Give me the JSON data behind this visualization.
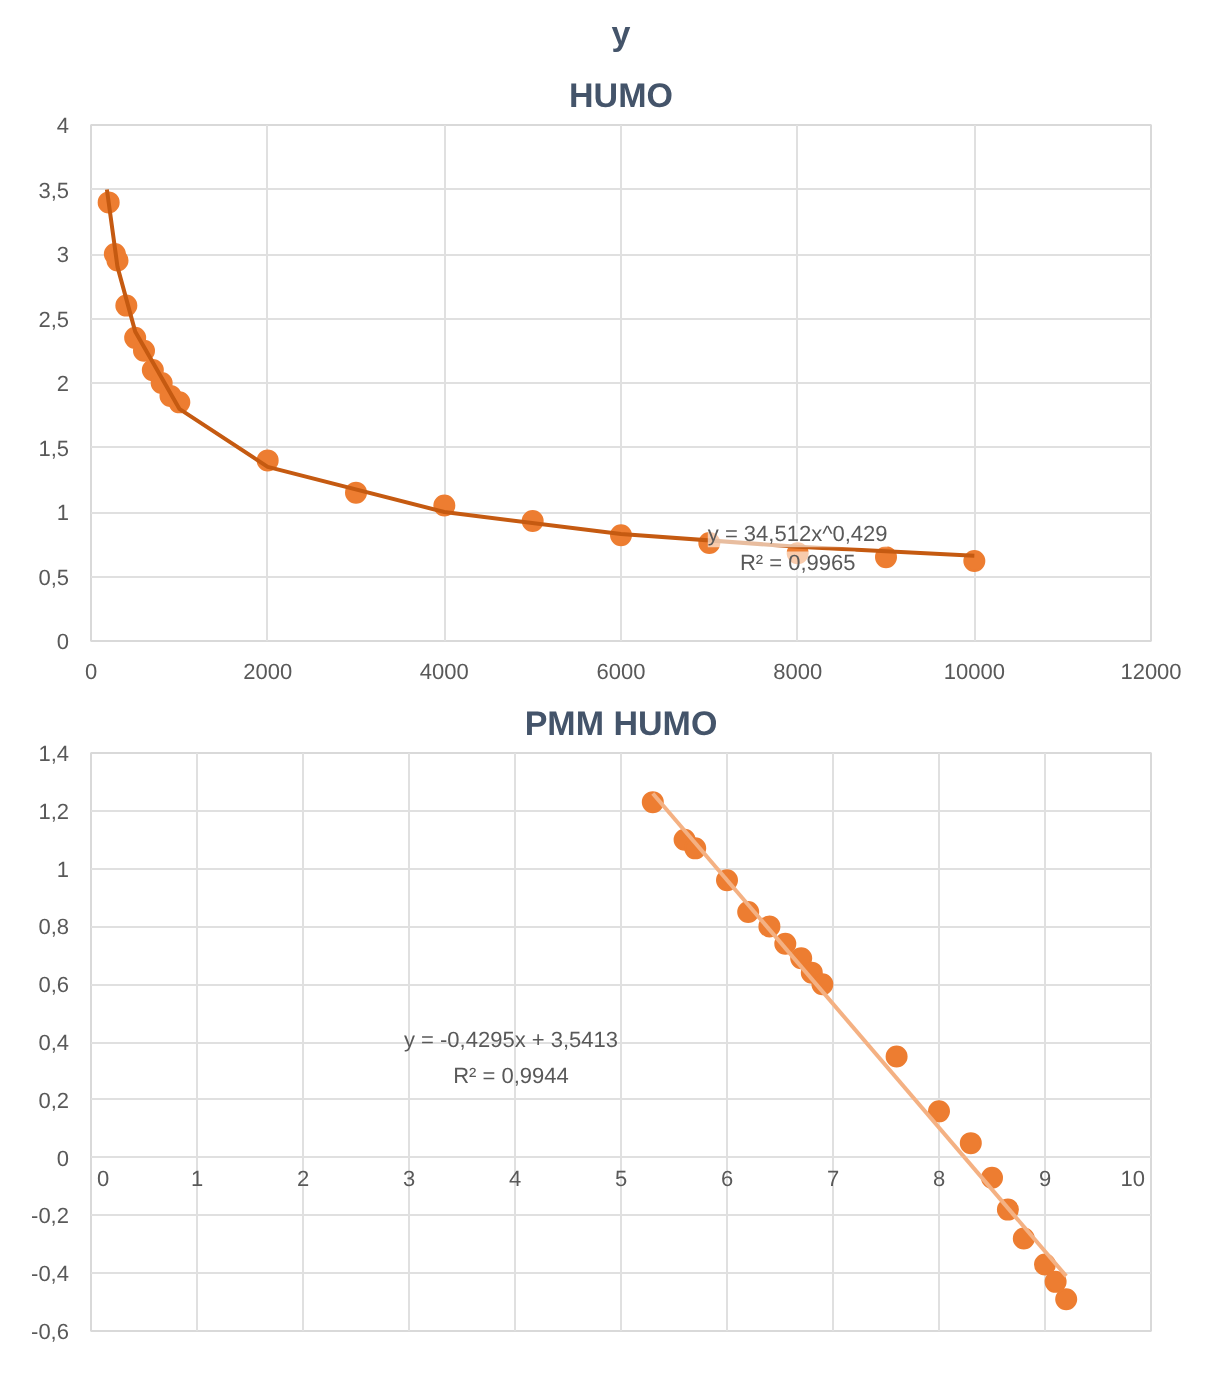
{
  "chart_data": [
    {
      "type": "scatter",
      "title": "y",
      "subtitle": "HUMO",
      "marker": "circle",
      "grid": true,
      "xlim": [
        0,
        12000
      ],
      "xticks": [
        0,
        2000,
        4000,
        6000,
        8000,
        10000,
        12000
      ],
      "ylim": [
        0,
        4
      ],
      "yticks": [
        0,
        {
          "value": 0.5,
          "label": "0,5"
        },
        1,
        {
          "value": 1.5,
          "label": "1,5"
        },
        2,
        {
          "value": 2.5,
          "label": "2,5"
        },
        3,
        {
          "value": 3.5,
          "label": "3,5"
        },
        4
      ],
      "series": [
        {
          "color": "#ed7d31",
          "x": [
            200,
            270,
            300,
            400,
            500,
            600,
            700,
            800,
            900,
            1000,
            2000,
            3000,
            4000,
            5000,
            6000,
            7000,
            8000,
            9000,
            10000
          ],
          "values": [
            3.4,
            3.0,
            2.95,
            2.6,
            2.35,
            2.25,
            2.1,
            2.0,
            1.9,
            1.85,
            1.4,
            1.15,
            1.05,
            0.93,
            0.82,
            0.76,
            0.68,
            0.65,
            0.62
          ]
        },
        {
          "type": "line",
          "marker": "none",
          "color": "#c55a11",
          "x": [
            180,
            300,
            500,
            1000,
            2000,
            4000,
            6000,
            8000,
            10000
          ],
          "values": [
            3.5,
            2.9,
            2.4,
            1.8,
            1.35,
            1.0,
            0.83,
            0.73,
            0.66
          ]
        }
      ],
      "annotations": [
        {
          "text": "y = 34,512x^0,429",
          "x": 8000,
          "y": 0.82
        },
        {
          "text": "R² = 0,9965",
          "x": 8000,
          "y": 0.6
        }
      ]
    },
    {
      "type": "scatter",
      "title": "PMM HUMO",
      "marker": "circle",
      "grid": true,
      "xlim": [
        0,
        10
      ],
      "xticks": [
        0,
        1,
        2,
        3,
        4,
        5,
        6,
        7,
        8,
        9,
        10
      ],
      "ylim": [
        -0.6,
        1.4
      ],
      "yticks": [
        {
          "value": -0.6,
          "label": "-0,6"
        },
        {
          "value": -0.4,
          "label": "-0,4"
        },
        {
          "value": -0.2,
          "label": "-0,2"
        },
        0,
        {
          "value": 0.2,
          "label": "0,2"
        },
        {
          "value": 0.4,
          "label": "0,4"
        },
        {
          "value": 0.6,
          "label": "0,6"
        },
        {
          "value": 0.8,
          "label": "0,8"
        },
        1,
        {
          "value": 1.2,
          "label": "1,2"
        },
        {
          "value": 1.4,
          "label": "1,4"
        }
      ],
      "series": [
        {
          "color": "#ed7d31",
          "x": [
            5.3,
            5.6,
            5.7,
            6.0,
            6.2,
            6.4,
            6.55,
            6.7,
            6.8,
            6.9,
            7.6,
            8.0,
            8.3,
            8.5,
            8.65,
            8.8,
            9.0,
            9.1,
            9.2
          ],
          "values": [
            1.23,
            1.1,
            1.07,
            0.96,
            0.85,
            0.8,
            0.74,
            0.69,
            0.64,
            0.6,
            0.35,
            0.16,
            0.05,
            -0.07,
            -0.18,
            -0.28,
            -0.37,
            -0.43,
            -0.49
          ]
        },
        {
          "type": "line",
          "marker": "none",
          "color": "#f4b183",
          "x": [
            5.3,
            9.2
          ],
          "values": [
            1.26,
            -0.41
          ]
        }
      ],
      "annotations": [
        "y = -0,4295x + 3,5413",
        "R² = 0,9944"
      ]
    }
  ]
}
